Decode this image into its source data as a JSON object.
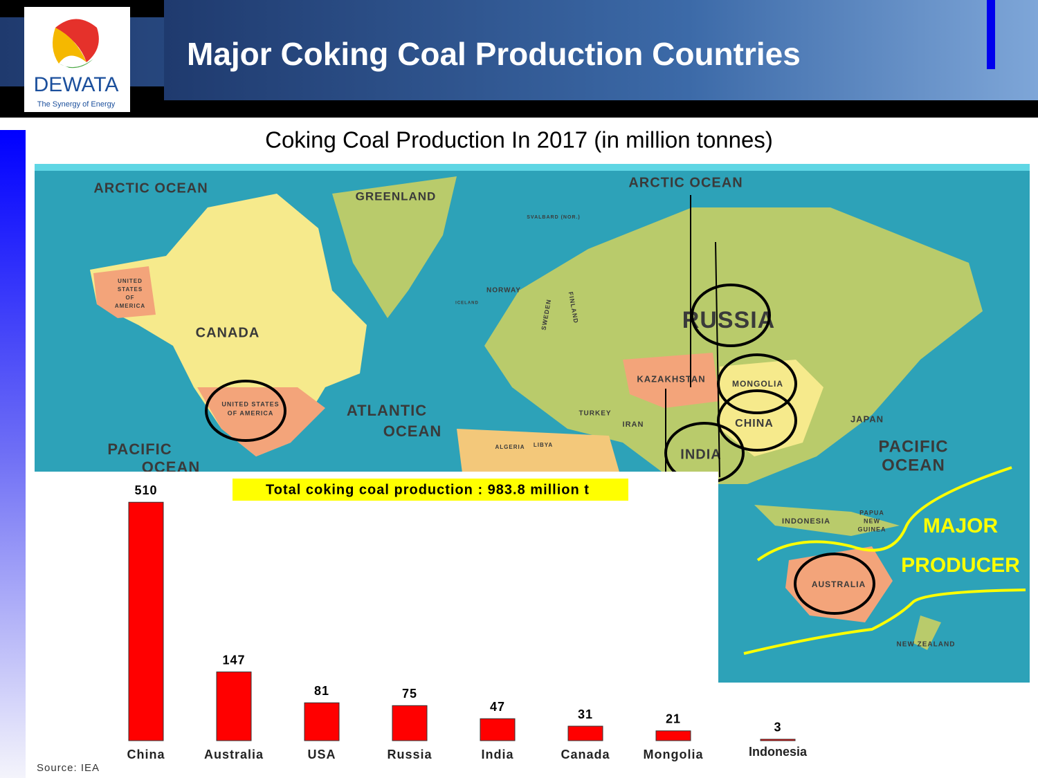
{
  "header": {
    "title": "Major Coking Coal Production Countries",
    "logo_name": "DEWATA",
    "logo_tagline": "The Synergy of Energy"
  },
  "subtitle": "Coking Coal Production In 2017 (in million tonnes)",
  "map": {
    "labels": [
      "ARCTIC OCEAN",
      "GREENLAND",
      "ARCTIC OCEAN",
      "SVALBARD (NOR.)",
      "UNITED",
      "STATES",
      "OF",
      "AMERICA",
      "NORWAY",
      "ICELAND",
      "SWEDEN",
      "FINLAND",
      "CANADA",
      "RUSSIA",
      "KAZAKHSTAN",
      "MONGOLIA",
      "UNITED STATES",
      "OF AMERICA",
      "ATLANTIC",
      "OCEAN",
      "TURKEY",
      "IRAN",
      "CHINA",
      "JAPAN",
      "PACIFIC",
      "OCEAN",
      "ALGERIA",
      "LIBYA",
      "INDIA",
      "PACIFIC",
      "OCEAN",
      "INDONESIA",
      "PAPUA",
      "NEW",
      "GUINEA",
      "AUSTRALIA",
      "NEW ZEALAND"
    ],
    "annotation": [
      "MAJOR",
      "PRODUCER"
    ]
  },
  "chart_data": {
    "type": "bar",
    "categories": [
      "China",
      "Australia",
      "USA",
      "Russia",
      "India",
      "Canada",
      "Mongolia",
      "Indonesia"
    ],
    "values": [
      510,
      147,
      81,
      75,
      47,
      31,
      21,
      3
    ],
    "color": "#ff0000",
    "annotation": "Total coking coal production : 983.8 million t",
    "source": "Source: IEA"
  }
}
